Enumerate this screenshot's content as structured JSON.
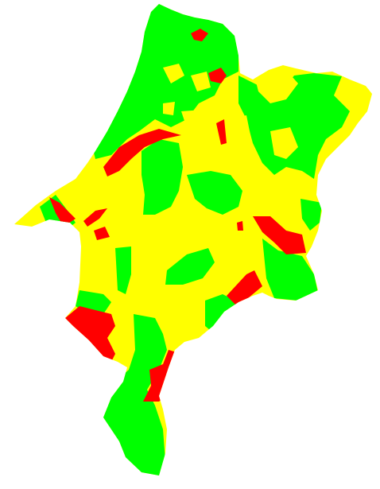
{
  "map": {
    "colors": {
      "background": "#ffffff",
      "green": "#00ff00",
      "yellow": "#ffff00",
      "red": "#ff0000"
    },
    "legend": []
  }
}
